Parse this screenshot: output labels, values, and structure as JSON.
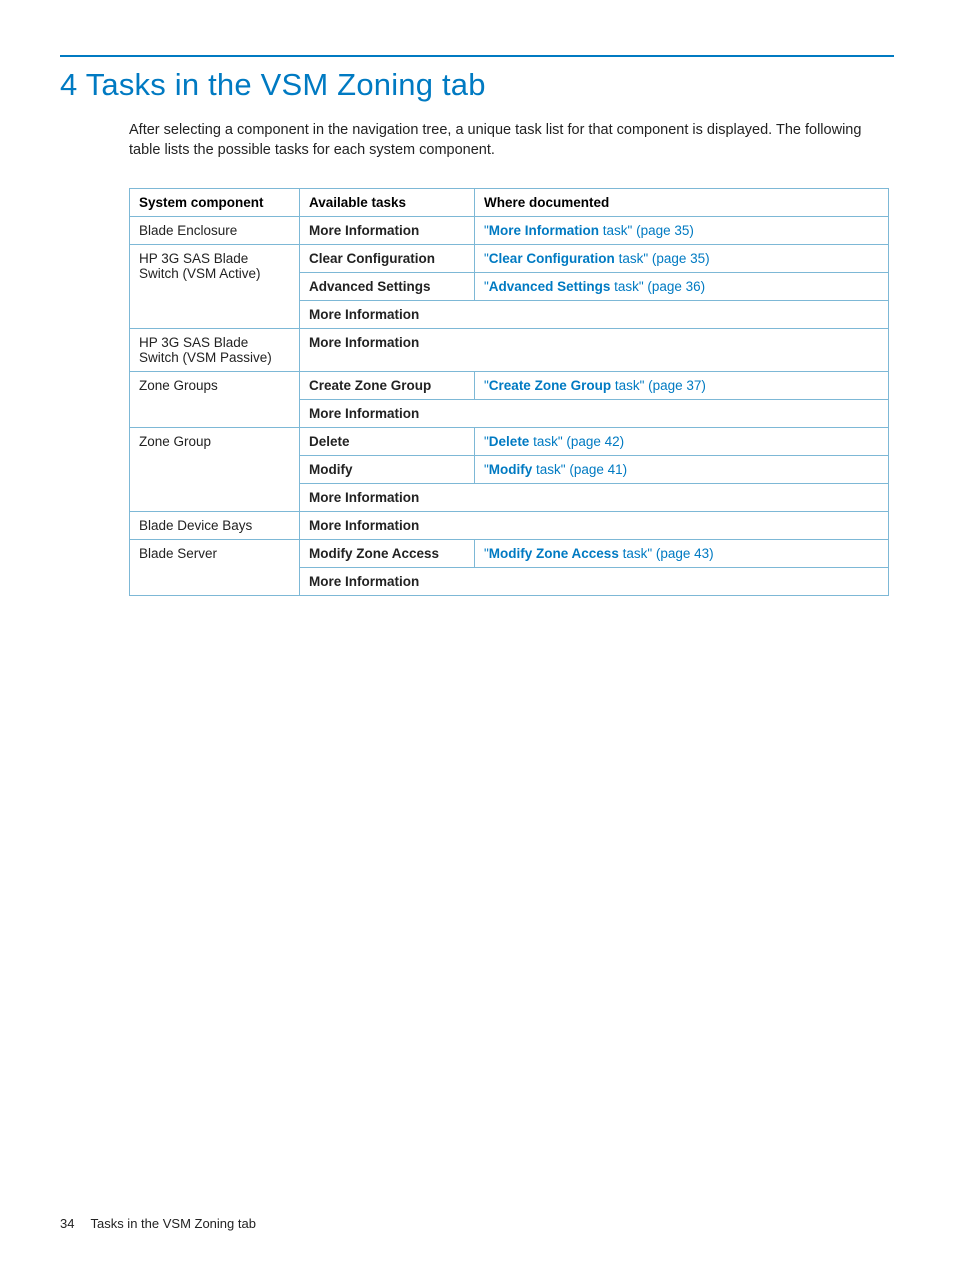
{
  "title": "4 Tasks in the VSM Zoning tab",
  "intro": "After selecting a component in the navigation tree, a unique task list for that component is displayed. The following table lists the possible tasks for each system component.",
  "colors": {
    "accent": "#007ac2",
    "border": "#7db8d6",
    "text": "#222222",
    "background": "#ffffff"
  },
  "table": {
    "headers": {
      "c1": "System component",
      "c2": "Available tasks",
      "c3": "Where documented"
    },
    "rows": {
      "r1": {
        "component": "Blade Enclosure",
        "task": "More Information",
        "doc_quote_open": "\"",
        "doc_bold": "More Information",
        "doc_rest": " task\" (page 35)"
      },
      "r2": {
        "component": "HP 3G SAS Blade Switch (VSM Active)",
        "task1": "Clear Configuration",
        "doc1_quote": "\"",
        "doc1_bold": "Clear Configuration",
        "doc1_rest": " task\" (page 35)",
        "task2": "Advanced Settings",
        "doc2_quote": "\"",
        "doc2_bold": "Advanced Settings",
        "doc2_rest": " task\" (page 36)",
        "task3": "More Information"
      },
      "r3": {
        "component": "HP 3G SAS Blade Switch (VSM Passive)",
        "task": "More Information"
      },
      "r4": {
        "component": "Zone Groups",
        "task1": "Create Zone Group",
        "doc1_quote": "\"",
        "doc1_bold": "Create Zone Group",
        "doc1_rest": " task\" (page 37)",
        "task2": "More Information"
      },
      "r5": {
        "component": "Zone Group",
        "task1": "Delete",
        "doc1_quote": "\"",
        "doc1_bold": "Delete",
        "doc1_rest": " task\" (page 42)",
        "task2": "Modify",
        "doc2_quote": "\"",
        "doc2_bold": "Modify",
        "doc2_rest": " task\" (page 41)",
        "task3": "More Information"
      },
      "r6": {
        "component": "Blade Device Bays",
        "task": "More Information"
      },
      "r7": {
        "component": "Blade Server",
        "task1": "Modify Zone Access",
        "doc1_quote": "\"",
        "doc1_bold": "Modify Zone Access",
        "doc1_rest": " task\" (page 43)",
        "task2": "More Information"
      }
    }
  },
  "footer": {
    "page_number": "34",
    "section": "Tasks in the VSM Zoning tab"
  }
}
